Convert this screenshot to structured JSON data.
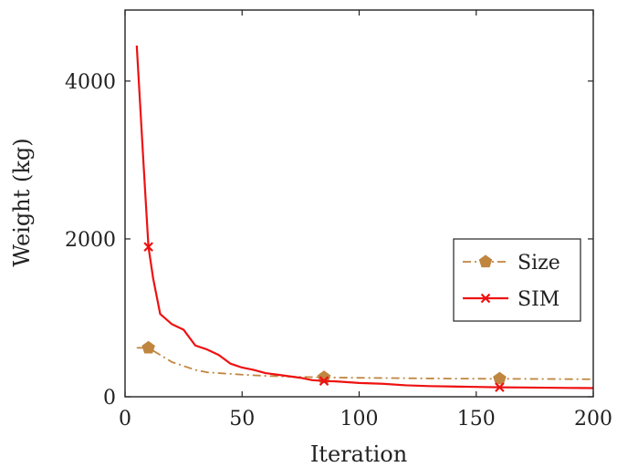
{
  "chart_data": {
    "type": "line",
    "xlabel": "Iteration",
    "ylabel": "Weight (kg)",
    "xlim": [
      0,
      200
    ],
    "ylim": [
      0,
      4900
    ],
    "xticks": [
      0,
      50,
      100,
      150,
      200
    ],
    "yticks": [
      0,
      2000,
      4000
    ],
    "grid": false,
    "legend_position": "right",
    "series": [
      {
        "name": "Size",
        "color": "#c0853f",
        "line_style": "dash-dot",
        "marker": "pentagon",
        "x": [
          5,
          10,
          15,
          20,
          25,
          30,
          35,
          40,
          45,
          50,
          60,
          70,
          85,
          100,
          120,
          140,
          160,
          180,
          200
        ],
        "y": [
          620,
          620,
          530,
          440,
          390,
          340,
          310,
          300,
          290,
          280,
          265,
          255,
          245,
          240,
          235,
          230,
          228,
          225,
          222
        ],
        "marker_x": [
          10,
          85,
          160
        ],
        "marker_y": [
          620,
          245,
          228
        ]
      },
      {
        "name": "SIM",
        "color": "#ee1111",
        "line_style": "solid",
        "marker": "cross",
        "x": [
          5,
          8,
          10,
          12,
          15,
          20,
          25,
          30,
          35,
          40,
          45,
          50,
          55,
          60,
          65,
          70,
          75,
          80,
          85,
          90,
          95,
          100,
          110,
          120,
          130,
          140,
          150,
          160,
          170,
          180,
          190,
          200
        ],
        "y": [
          4450,
          2900,
          1900,
          1500,
          1050,
          920,
          850,
          650,
          600,
          530,
          420,
          370,
          340,
          300,
          280,
          260,
          240,
          210,
          200,
          195,
          185,
          175,
          165,
          145,
          135,
          130,
          125,
          120,
          118,
          115,
          112,
          110
        ],
        "marker_x": [
          10,
          85,
          160
        ],
        "marker_y": [
          1900,
          200,
          120
        ]
      }
    ]
  }
}
